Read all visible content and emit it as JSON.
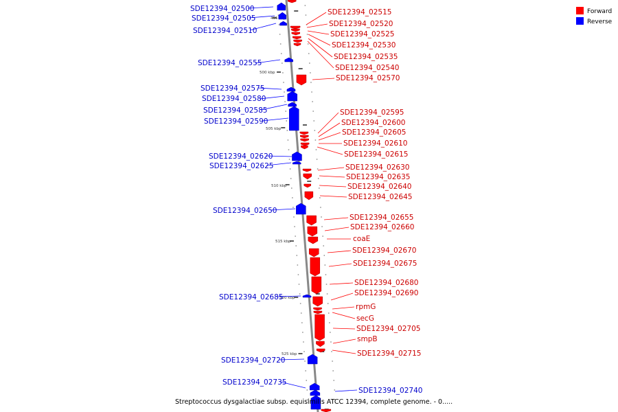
{
  "legend": {
    "forward": {
      "label": "Forward",
      "color": "#ff0000"
    },
    "reverse": {
      "label": "Reverse",
      "color": "#0000ff"
    }
  },
  "caption": "Streptococcus dysgalactiae subsp. equisimilis ATCC 12394, complete genome. - 0.....",
  "scale_marks": [
    "495 kbp",
    "500 kbp",
    "505 kbp",
    "510 kbp",
    "515 kbp",
    "520 kbp",
    "525 kbp"
  ],
  "forward_genes": [
    "SDE12394_02515",
    "SDE12394_02520",
    "SDE12394_02525",
    "SDE12394_02530",
    "SDE12394_02535",
    "SDE12394_02540",
    "SDE12394_02570",
    "SDE12394_02595",
    "SDE12394_02600",
    "SDE12394_02605",
    "SDE12394_02610",
    "SDE12394_02615",
    "SDE12394_02630",
    "SDE12394_02635",
    "SDE12394_02640",
    "SDE12394_02645",
    "SDE12394_02655",
    "SDE12394_02660",
    "coaE",
    "SDE12394_02670",
    "SDE12394_02675",
    "SDE12394_02680",
    "SDE12394_02690",
    "rpmG",
    "secG",
    "SDE12394_02705",
    "smpB",
    "SDE12394_02715"
  ],
  "reverse_genes": [
    "SDE12394_02500",
    "SDE12394_02505",
    "SDE12394_02510",
    "SDE12394_02555",
    "SDE12394_02575",
    "SDE12394_02580",
    "SDE12394_02585",
    "SDE12394_02590",
    "SDE12394_02620",
    "SDE12394_02625",
    "SDE12394_02650",
    "SDE12394_02685",
    "SDE12394_02720",
    "SDE12394_02735",
    "SDE12394_02740"
  ]
}
